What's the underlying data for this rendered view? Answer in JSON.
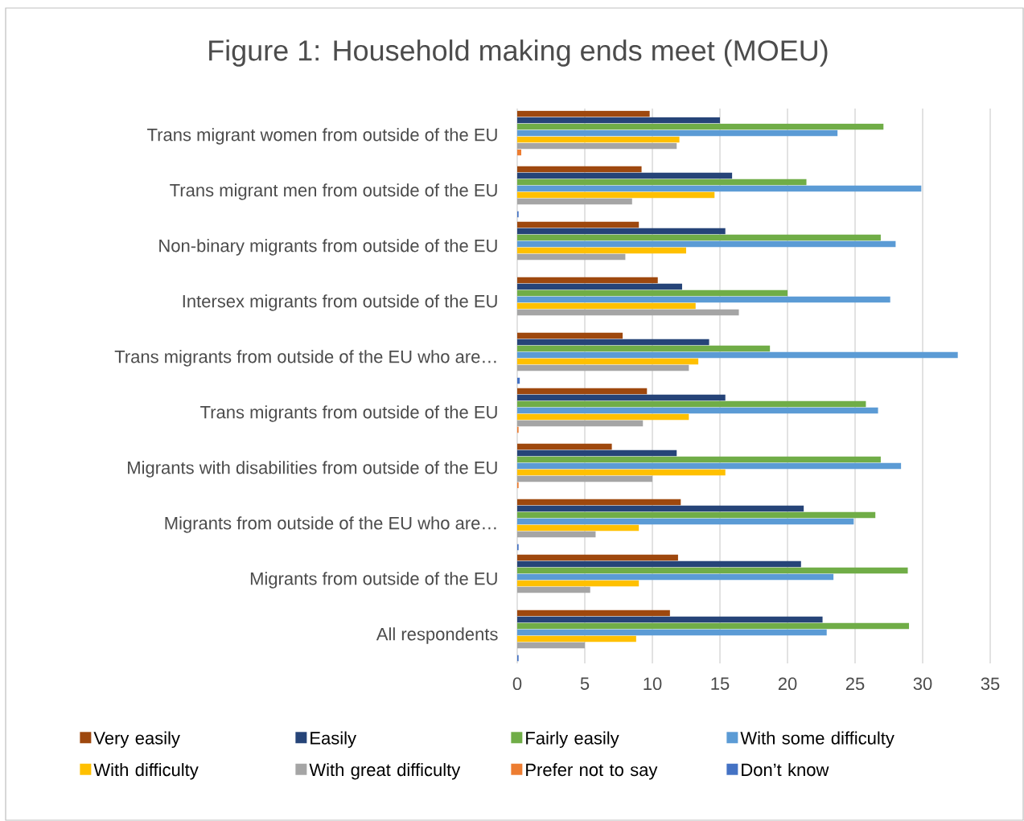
{
  "chart_data": {
    "type": "bar",
    "orientation": "horizontal",
    "title": "Figure 1: Household making ends meet (MOEU)",
    "categories": [
      "Trans migrant women from outside of the EU",
      "Trans migrant men from outside of the EU",
      "Non-binary migrants from outside of the EU",
      "Intersex migrants from outside of the EU",
      "Trans migrants from outside of the EU who are…",
      "Trans migrants from outside of the EU",
      "Migrants with disabilities from outside of the EU",
      "Migrants from outside of the EU who are…",
      "Migrants from outside of the EU",
      "All respondents"
    ],
    "series": [
      {
        "name": "Very easily",
        "color": "#9e480e",
        "values": [
          9.8,
          9.2,
          9.0,
          10.4,
          7.8,
          9.6,
          7.0,
          12.1,
          11.9,
          11.3
        ]
      },
      {
        "name": "Easily",
        "color": "#264478",
        "values": [
          15.0,
          15.9,
          15.4,
          12.2,
          14.2,
          15.4,
          11.8,
          21.2,
          21.0,
          22.6
        ]
      },
      {
        "name": "Fairly easily",
        "color": "#70ad47",
        "values": [
          27.1,
          21.4,
          26.9,
          20.0,
          18.7,
          25.8,
          26.9,
          26.5,
          28.9,
          29.0
        ]
      },
      {
        "name": "With some difficulty",
        "color": "#5b9bd5",
        "values": [
          23.7,
          29.9,
          28.0,
          27.6,
          32.6,
          26.7,
          28.4,
          24.9,
          23.4,
          22.9
        ]
      },
      {
        "name": "With difficulty",
        "color": "#ffc000",
        "values": [
          12.0,
          14.6,
          12.5,
          13.2,
          13.4,
          12.7,
          15.4,
          9.0,
          9.0,
          8.8
        ]
      },
      {
        "name": "With great difficulty",
        "color": "#a5a5a5",
        "values": [
          11.8,
          8.5,
          8.0,
          16.4,
          12.7,
          9.3,
          10.0,
          5.8,
          5.4,
          5.0
        ]
      },
      {
        "name": "Prefer not to say",
        "color": "#ed7d31",
        "values": [
          0.3,
          null,
          null,
          null,
          null,
          0.1,
          0.1,
          null,
          null,
          null
        ]
      },
      {
        "name": "Don’t know",
        "color": "#4472c4",
        "values": [
          null,
          0.1,
          null,
          null,
          0.2,
          null,
          null,
          0.1,
          null,
          0.1
        ]
      }
    ],
    "xlim": [
      0,
      35
    ],
    "xticks": [
      0,
      5,
      10,
      15,
      20,
      25,
      30,
      35
    ],
    "grid": "x",
    "legend": "bottom"
  }
}
